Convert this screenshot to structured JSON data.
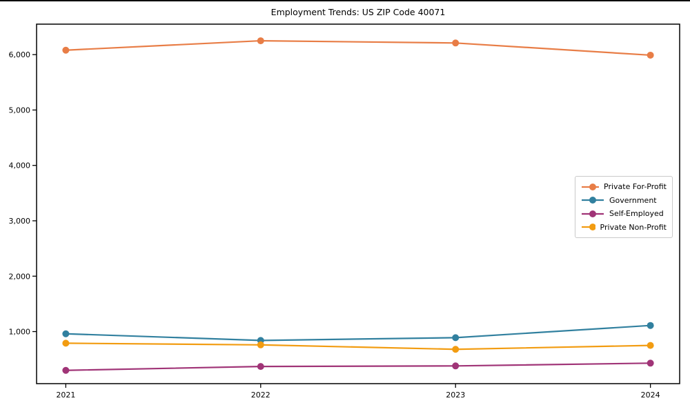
{
  "window": {
    "top_border_color": "#000000"
  },
  "chart_data": {
    "type": "line",
    "title": "Employment Trends: US ZIP Code 40071",
    "xlabel": "",
    "ylabel": "",
    "x": [
      2021,
      2022,
      2023,
      2024
    ],
    "x_tick_labels": [
      "2021",
      "2022",
      "2023",
      "2024"
    ],
    "y_ticks": [
      1000,
      2000,
      3000,
      4000,
      5000,
      6000
    ],
    "y_tick_labels": [
      "1,000",
      "2,000",
      "3,000",
      "4,000",
      "5,000",
      "6,000"
    ],
    "xlim": [
      2020.85,
      2024.15
    ],
    "ylim": [
      60,
      6550
    ],
    "grid": false,
    "legend_position": "center-right",
    "axis_color": "#000000",
    "background": "#ffffff",
    "series": [
      {
        "name": "Private For-Profit",
        "color": "#e87d46",
        "values": [
          6080,
          6250,
          6210,
          5990
        ]
      },
      {
        "name": "Government",
        "color": "#31809f",
        "values": [
          960,
          840,
          890,
          1110
        ]
      },
      {
        "name": "Self-Employed",
        "color": "#a03477",
        "values": [
          300,
          370,
          380,
          430
        ]
      },
      {
        "name": "Private Non-Profit",
        "color": "#f29c11",
        "values": [
          790,
          760,
          680,
          750
        ]
      }
    ]
  }
}
